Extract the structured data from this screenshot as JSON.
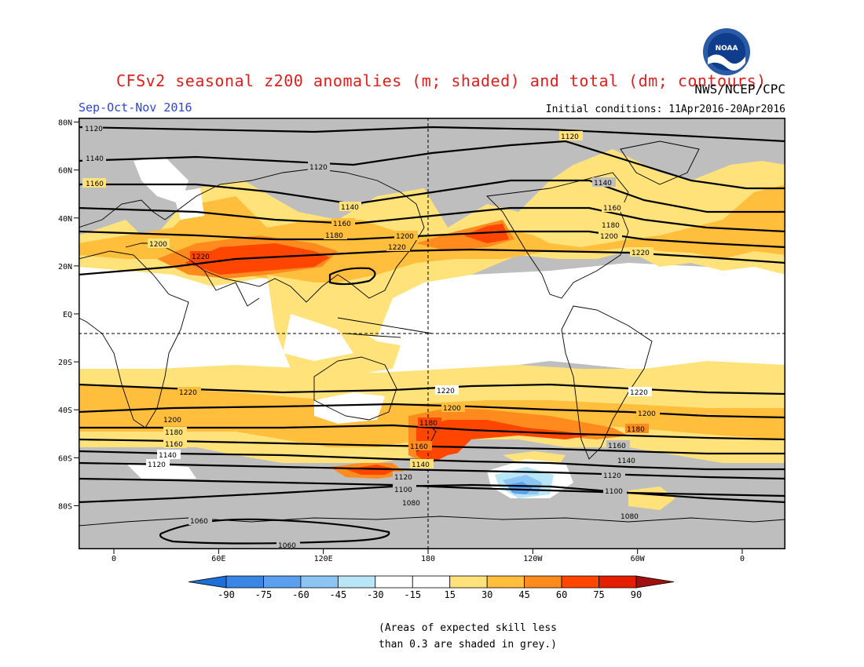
{
  "header": {
    "title": "CFSv2 seasonal z200 anomalies (m; shaded) and total (dm; contours)",
    "agency": "NWS/NCEP/CPC",
    "season": "Sep-Oct-Nov 2016",
    "initial_conditions": "Initial conditions: 11Apr2016-20Apr2016"
  },
  "logo": {
    "text": "NOAA",
    "icon": "noaa-logo-icon"
  },
  "map": {
    "projection": "equirectangular",
    "lon_range": [
      -15,
      285
    ],
    "lat_range": [
      -90,
      90
    ],
    "lat_ticks": [
      {
        "lat": 80,
        "label": "80N"
      },
      {
        "lat": 60,
        "label": "60N"
      },
      {
        "lat": 40,
        "label": "40N"
      },
      {
        "lat": 20,
        "label": "20N"
      },
      {
        "lat": 0,
        "label": "EQ"
      },
      {
        "lat": -20,
        "label": "20S"
      },
      {
        "lat": -40,
        "label": "40S"
      },
      {
        "lat": -60,
        "label": "60S"
      },
      {
        "lat": -80,
        "label": "80S"
      }
    ],
    "lon_ticks": [
      {
        "lon": 0,
        "label": "0"
      },
      {
        "lon": 60,
        "label": "60E"
      },
      {
        "lon": 120,
        "label": "120E"
      },
      {
        "lon": 180,
        "label": "180"
      },
      {
        "lon": 240,
        "label": "120W"
      },
      {
        "lon": 300,
        "label": "60W"
      },
      {
        "lon": 360,
        "label": "0"
      }
    ],
    "contours": [
      {
        "value": 1120,
        "label": "1120"
      },
      {
        "value": 1140,
        "label": "1140"
      },
      {
        "value": 1160,
        "label": "1160"
      },
      {
        "value": 1180,
        "label": "1180"
      },
      {
        "value": 1200,
        "label": "1200"
      },
      {
        "value": 1220,
        "label": "1220"
      },
      {
        "value": 1100,
        "label": "1100"
      },
      {
        "value": 1080,
        "label": "1080"
      },
      {
        "value": 1060,
        "label": "1060"
      }
    ],
    "colors": {
      "grey": "#bebebe",
      "white": "#ffffff",
      "ocean": "#ffffff",
      "c15": "#ffe27a",
      "c30": "#ffbe3c",
      "c45": "#ff8a1e",
      "c60": "#ff4600",
      "c75": "#e61e00"
    }
  },
  "colorbar": {
    "labels": [
      "-90",
      "-75",
      "-60",
      "-45",
      "-30",
      "-15",
      "15",
      "30",
      "45",
      "60",
      "75",
      "90"
    ],
    "colors": [
      "#1e6ed8",
      "#3a86e6",
      "#5aa0ee",
      "#8cc4f4",
      "#b9e6f6",
      "#ffffff",
      "#ffffff",
      "#ffe27a",
      "#ffbe3c",
      "#ff8a1e",
      "#ff4600",
      "#e61e00",
      "#a01010"
    ]
  },
  "footnote": {
    "line1": "(Areas of expected skill less",
    "line2": "than 0.3 are shaded in grey.)"
  }
}
